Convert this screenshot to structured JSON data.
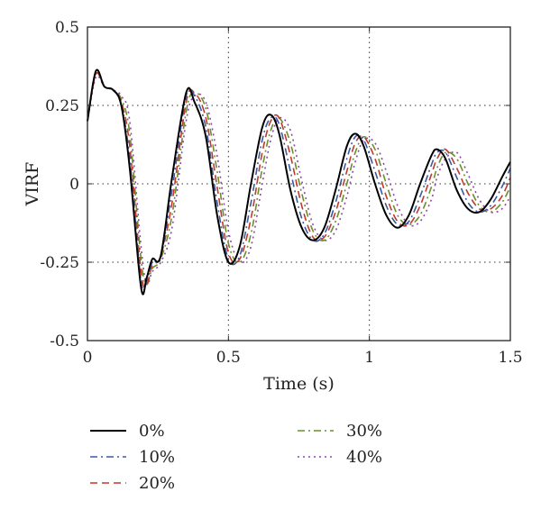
{
  "chart_data": {
    "type": "line",
    "title": "",
    "xlabel": "Time (s)",
    "ylabel": "VIRF",
    "xlim": [
      0,
      1.5
    ],
    "ylim": [
      -0.5,
      0.5
    ],
    "grid": true,
    "legend_placement": "below",
    "xticks": [
      0,
      0.5,
      1,
      1.5
    ],
    "xtick_labels": [
      "0",
      "0.5",
      "1",
      "1.5"
    ],
    "yticks": [
      -0.5,
      -0.25,
      0,
      0.25,
      0.5
    ],
    "ytick_labels": [
      "-0.5",
      "-0.25",
      "0",
      "0.25",
      "0.5"
    ],
    "series": [
      {
        "name": "0%",
        "color": "#000000",
        "dash": "solid",
        "x": [
          0,
          0.03,
          0.06,
          0.09,
          0.12,
          0.15,
          0.19,
          0.21,
          0.23,
          0.26,
          0.3,
          0.35,
          0.38,
          0.42,
          0.46,
          0.5,
          0.54,
          0.58,
          0.62,
          0.65,
          0.68,
          0.72,
          0.76,
          0.8,
          0.84,
          0.88,
          0.92,
          0.95,
          0.98,
          1.02,
          1.06,
          1.1,
          1.14,
          1.18,
          1.22,
          1.24,
          1.27,
          1.31,
          1.35,
          1.39,
          1.43,
          1.47,
          1.5
        ],
        "y": [
          0.2,
          0.36,
          0.31,
          0.3,
          0.25,
          0.05,
          -0.33,
          -0.3,
          -0.24,
          -0.23,
          0.02,
          0.29,
          0.26,
          0.15,
          -0.1,
          -0.25,
          -0.2,
          0.0,
          0.18,
          0.22,
          0.16,
          -0.02,
          -0.14,
          -0.18,
          -0.14,
          -0.02,
          0.12,
          0.16,
          0.12,
          0.0,
          -0.1,
          -0.14,
          -0.1,
          0.0,
          0.09,
          0.11,
          0.08,
          -0.02,
          -0.08,
          -0.09,
          -0.05,
          0.02,
          0.07
        ]
      },
      {
        "name": "10%",
        "color": "#3a5aa0",
        "dash": "dashdot",
        "x": [
          0,
          0.03,
          0.06,
          0.09,
          0.12,
          0.15,
          0.19,
          0.21,
          0.23,
          0.26,
          0.3,
          0.35,
          0.38,
          0.42,
          0.46,
          0.5,
          0.54,
          0.58,
          0.62,
          0.65,
          0.68,
          0.72,
          0.76,
          0.8,
          0.84,
          0.88,
          0.92,
          0.95,
          0.98,
          1.02,
          1.06,
          1.1,
          1.14,
          1.18,
          1.22,
          1.24,
          1.27,
          1.31,
          1.35,
          1.39,
          1.43,
          1.47,
          1.5
        ],
        "y": [
          0.2,
          0.36,
          0.31,
          0.3,
          0.25,
          0.08,
          -0.31,
          -0.31,
          -0.25,
          -0.23,
          -0.02,
          0.28,
          0.28,
          0.18,
          -0.06,
          -0.24,
          -0.23,
          -0.06,
          0.14,
          0.21,
          0.19,
          0.04,
          -0.11,
          -0.18,
          -0.16,
          -0.06,
          0.08,
          0.15,
          0.14,
          0.04,
          -0.07,
          -0.13,
          -0.12,
          -0.04,
          0.06,
          0.1,
          0.1,
          0.02,
          -0.06,
          -0.09,
          -0.07,
          -0.01,
          0.05
        ]
      },
      {
        "name": "20%",
        "color": "#c0392b",
        "dash": "dashed",
        "x": [
          0,
          0.03,
          0.06,
          0.09,
          0.12,
          0.15,
          0.19,
          0.21,
          0.23,
          0.26,
          0.3,
          0.35,
          0.38,
          0.42,
          0.46,
          0.5,
          0.54,
          0.58,
          0.62,
          0.65,
          0.68,
          0.72,
          0.76,
          0.8,
          0.84,
          0.88,
          0.92,
          0.95,
          0.98,
          1.02,
          1.06,
          1.1,
          1.14,
          1.18,
          1.22,
          1.24,
          1.27,
          1.31,
          1.35,
          1.39,
          1.43,
          1.47,
          1.5
        ],
        "y": [
          0.2,
          0.35,
          0.31,
          0.3,
          0.26,
          0.12,
          -0.28,
          -0.32,
          -0.26,
          -0.23,
          -0.06,
          0.26,
          0.29,
          0.21,
          -0.01,
          -0.22,
          -0.24,
          -0.11,
          0.1,
          0.2,
          0.21,
          0.09,
          -0.07,
          -0.17,
          -0.17,
          -0.09,
          0.04,
          0.13,
          0.15,
          0.08,
          -0.04,
          -0.12,
          -0.13,
          -0.07,
          0.03,
          0.08,
          0.11,
          0.05,
          -0.03,
          -0.08,
          -0.08,
          -0.04,
          0.02
        ]
      },
      {
        "name": "30%",
        "color": "#6a8f2a",
        "dash": "dashdot",
        "x": [
          0,
          0.03,
          0.06,
          0.09,
          0.12,
          0.15,
          0.19,
          0.21,
          0.23,
          0.26,
          0.3,
          0.35,
          0.38,
          0.42,
          0.46,
          0.5,
          0.54,
          0.58,
          0.62,
          0.65,
          0.68,
          0.72,
          0.76,
          0.8,
          0.84,
          0.88,
          0.92,
          0.95,
          0.98,
          1.02,
          1.06,
          1.1,
          1.14,
          1.18,
          1.22,
          1.24,
          1.27,
          1.31,
          1.35,
          1.39,
          1.43,
          1.47,
          1.5
        ],
        "y": [
          0.2,
          0.35,
          0.31,
          0.3,
          0.27,
          0.16,
          -0.24,
          -0.32,
          -0.27,
          -0.24,
          -0.1,
          0.23,
          0.29,
          0.24,
          0.04,
          -0.19,
          -0.25,
          -0.16,
          0.05,
          0.17,
          0.21,
          0.13,
          -0.03,
          -0.15,
          -0.18,
          -0.12,
          0.0,
          0.1,
          0.15,
          0.11,
          0.0,
          -0.1,
          -0.13,
          -0.1,
          -0.01,
          0.05,
          0.1,
          0.08,
          0.0,
          -0.07,
          -0.09,
          -0.06,
          -0.01
        ]
      },
      {
        "name": "40%",
        "color": "#8e44ad",
        "dash": "dotted",
        "x": [
          0,
          0.03,
          0.06,
          0.09,
          0.12,
          0.15,
          0.19,
          0.21,
          0.23,
          0.26,
          0.3,
          0.35,
          0.38,
          0.42,
          0.46,
          0.5,
          0.54,
          0.58,
          0.62,
          0.65,
          0.68,
          0.72,
          0.76,
          0.8,
          0.84,
          0.88,
          0.92,
          0.95,
          0.98,
          1.02,
          1.06,
          1.1,
          1.14,
          1.18,
          1.22,
          1.24,
          1.27,
          1.31,
          1.35,
          1.39,
          1.43,
          1.47,
          1.5
        ],
        "y": [
          0.2,
          0.34,
          0.31,
          0.3,
          0.28,
          0.2,
          -0.2,
          -0.32,
          -0.28,
          -0.25,
          -0.14,
          0.2,
          0.28,
          0.26,
          0.09,
          -0.15,
          -0.25,
          -0.2,
          0.0,
          0.14,
          0.21,
          0.17,
          0.01,
          -0.13,
          -0.18,
          -0.15,
          -0.04,
          0.07,
          0.14,
          0.13,
          0.04,
          -0.07,
          -0.13,
          -0.12,
          -0.05,
          0.02,
          0.08,
          0.1,
          0.03,
          -0.05,
          -0.09,
          -0.08,
          -0.04
        ]
      }
    ]
  }
}
